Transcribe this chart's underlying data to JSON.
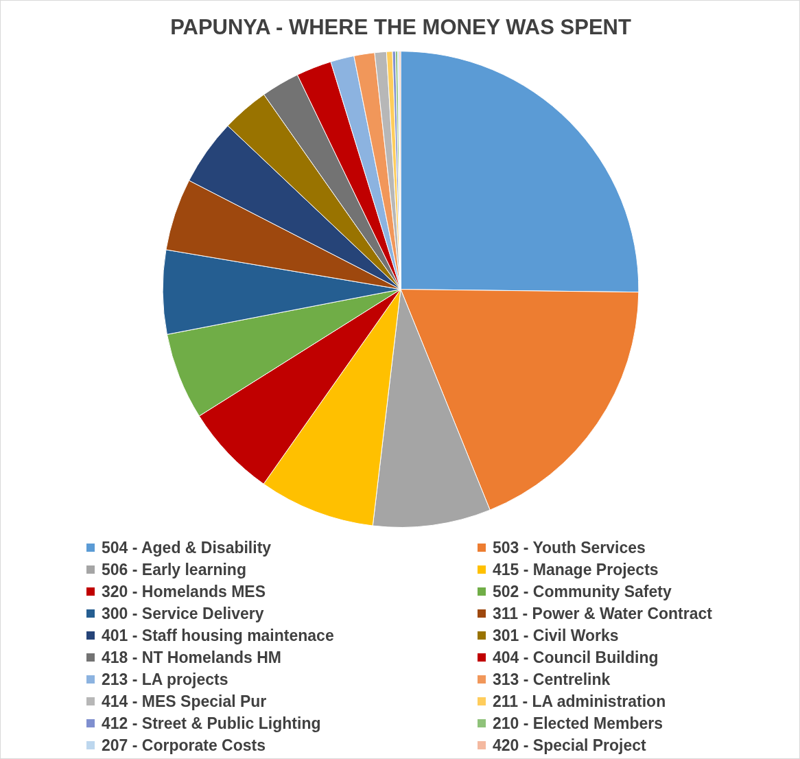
{
  "chart_data": {
    "type": "pie",
    "title": "PAPUNYA - WHERE THE MONEY WAS SPENT",
    "categories": [
      "504 - Aged & Disability",
      "503 - Youth Services",
      "506 - Early learning",
      "415 - Manage Projects",
      "320 - Homelands MES",
      "502 - Community Safety",
      "300 - Service Delivery",
      "311 - Power & Water Contract",
      "401 - Staff housing maintenace",
      "301 - Civil Works",
      "418 - NT Homelands HM",
      "404 - Council Building",
      "213 - LA projects",
      "313 - Centrelink",
      "414 - MES Special Pur",
      "211 - LA administration",
      "412 - Street & Public Lighting",
      "210 - Elected Members",
      "207 - Corporate Costs",
      "420 - Special Project"
    ],
    "values": [
      25.2,
      18.7,
      8.0,
      7.9,
      6.3,
      5.9,
      5.7,
      4.9,
      4.5,
      3.2,
      2.6,
      2.4,
      1.6,
      1.4,
      0.8,
      0.4,
      0.2,
      0.15,
      0.1,
      0.1
    ],
    "colors": [
      "#5b9bd5",
      "#ed7d31",
      "#a5a5a5",
      "#ffc000",
      "#c00000",
      "#70ad47",
      "#255e91",
      "#9e480e",
      "#264478",
      "#997300",
      "#737373",
      "#c00000",
      "#8cb3e0",
      "#f1975a",
      "#b7b7b7",
      "#ffcd5c",
      "#7f8fcf",
      "#8fc27a",
      "#bdd7ee",
      "#f4b9a0"
    ],
    "legend": "bottom"
  }
}
